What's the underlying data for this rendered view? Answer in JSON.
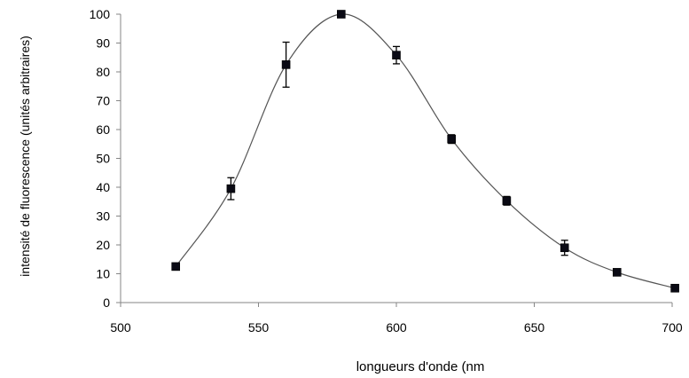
{
  "chart_data": {
    "type": "scatter",
    "title": "",
    "xlabel": "longueurs d'onde (nm",
    "ylabel": "intensité de fluorescence (unités arbitraires)",
    "xlim": [
      500,
      700
    ],
    "ylim": [
      0,
      100
    ],
    "x_ticks": [
      500,
      550,
      600,
      650,
      700
    ],
    "y_ticks": [
      0,
      10,
      20,
      30,
      40,
      50,
      60,
      70,
      80,
      90,
      100
    ],
    "grid": false,
    "legend": "none",
    "series": [
      {
        "x": [
          520,
          540,
          560,
          580,
          600,
          620,
          640,
          661,
          680,
          701
        ],
        "values": [
          12.5,
          39.5,
          82.5,
          100,
          85.8,
          56.7,
          35.3,
          19.0,
          10.5,
          5.0
        ],
        "error": [
          0,
          3.8,
          7.8,
          0,
          3.0,
          1.5,
          1.5,
          2.6,
          0,
          0
        ],
        "marker": "square",
        "line": "smooth",
        "color": "#000000"
      }
    ]
  }
}
